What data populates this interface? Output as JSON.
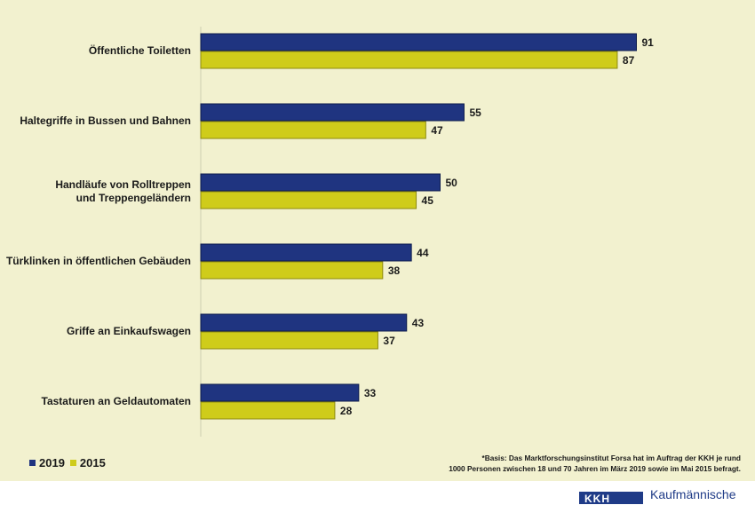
{
  "chart_data": {
    "type": "bar",
    "orientation": "horizontal",
    "categories": [
      "Öffentliche Toiletten",
      "Haltegriffe in Bussen und Bahnen",
      "Handläufe von Rolltreppen\nund Treppengeländern",
      "Türklinken in öffentlichen Gebäuden",
      "Griffe an Einkaufswagen",
      "Tastaturen an Geldautomaten"
    ],
    "series": [
      {
        "name": "2019",
        "color": "#1f3480",
        "values": [
          91,
          55,
          50,
          44,
          43,
          33
        ]
      },
      {
        "name": "2015",
        "color": "#cfcc1a",
        "values": [
          87,
          47,
          45,
          38,
          37,
          28
        ]
      }
    ],
    "xlim": [
      0,
      100
    ],
    "grid": false,
    "legend": "bottom-left",
    "data_labels": true
  },
  "legend": {
    "items": [
      {
        "label": "2019"
      },
      {
        "label": "2015"
      }
    ]
  },
  "footnote": {
    "line1": "*Basis: Das Marktforschungsinstitut Forsa hat im Auftrag der KKH je rund",
    "line2": "1000 Personen zwischen 18 und 70 Jahren im März 2019 sowie im Mai 2015 befragt."
  },
  "logo": {
    "mark": "KKH",
    "text": "Kaufmännische"
  }
}
